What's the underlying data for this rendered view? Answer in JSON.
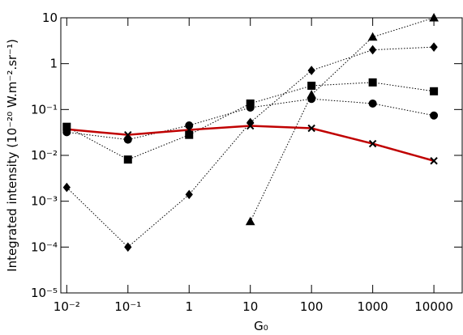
{
  "chart_data": {
    "type": "line",
    "x": [
      0.01,
      0.1,
      1,
      10,
      100,
      1000,
      10000
    ],
    "xlabel": "G₀",
    "ylabel": "Integrated intensity (10⁻²⁰ W.m⁻².sr⁻¹)",
    "xlog": true,
    "ylog": true,
    "xlim": [
      0.008,
      29000
    ],
    "ylim": [
      1e-05,
      10
    ],
    "xticks": [
      {
        "value": 0.01,
        "label": "10⁻²"
      },
      {
        "value": 0.1,
        "label": "10⁻¹"
      },
      1,
      10,
      100,
      1000,
      10000
    ],
    "yticks": [
      {
        "value": 1e-05,
        "label": "10⁻⁵"
      },
      {
        "value": 0.0001,
        "label": "10⁻⁴"
      },
      {
        "value": 0.001,
        "label": "10⁻³"
      },
      {
        "value": 0.01,
        "label": "10⁻²"
      },
      {
        "value": 0.1,
        "label": "10⁻¹"
      },
      1,
      10
    ],
    "series": [
      {
        "marker": "square",
        "color": "#000000",
        "style": "dotted",
        "values": [
          0.042,
          0.0081,
          0.028,
          0.135,
          0.33,
          0.39,
          0.25
        ]
      },
      {
        "marker": "circle",
        "color": "#000000",
        "style": "dotted",
        "values": [
          0.032,
          0.022,
          0.045,
          0.11,
          0.17,
          0.135,
          0.074
        ]
      },
      {
        "marker": "diamond",
        "color": "#000000",
        "style": "dotted",
        "values": [
          0.002,
          0.0001,
          0.0014,
          0.052,
          0.71,
          2.0,
          2.3
        ]
      },
      {
        "marker": "triangle",
        "color": "#000000",
        "style": "dotted",
        "values": [
          null,
          null,
          null,
          0.00036,
          0.21,
          3.8,
          10
        ]
      },
      {
        "marker": "cross",
        "color": "#c00000",
        "style": "solid",
        "values": [
          0.037,
          0.028,
          0.036,
          0.044,
          0.039,
          0.018,
          0.0076
        ]
      }
    ]
  }
}
